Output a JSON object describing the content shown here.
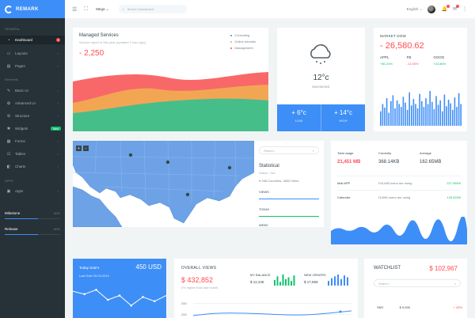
{
  "brand": {
    "name": "REMARK"
  },
  "sidebar": {
    "cat_general": "GENERAL",
    "cat_elements": "Elements",
    "cat_apps": "APPS",
    "items": [
      {
        "label": "Dashboard",
        "icon": "dashboard-icon",
        "badge": "3"
      },
      {
        "label": "Layouts",
        "icon": "layouts-icon"
      },
      {
        "label": "Pages",
        "icon": "pages-icon"
      },
      {
        "label": "Basic UI",
        "icon": "basic-ui-icon"
      },
      {
        "label": "Advanced UI",
        "icon": "advanced-ui-icon"
      },
      {
        "label": "Structure",
        "icon": "structure-icon"
      },
      {
        "label": "Widgets",
        "icon": "widgets-icon",
        "badge": "New"
      },
      {
        "label": "Forms",
        "icon": "forms-icon"
      },
      {
        "label": "Tables",
        "icon": "tables-icon"
      },
      {
        "label": "Charts",
        "icon": "charts-icon"
      },
      {
        "label": "Apps",
        "icon": "apps-icon"
      }
    ],
    "progress": [
      {
        "label": "Milestone",
        "pct_label": "60%",
        "value": 0.6
      },
      {
        "label": "Release",
        "pct_label": "60%",
        "value": 0.6
      }
    ]
  },
  "topbar": {
    "mega_label": "Mega",
    "search_placeholder": "Search Dashboard",
    "language": "English"
  },
  "managed": {
    "title": "Managed Services",
    "subtitle": "Service report of this year (updated 1 hour ago)",
    "value": "- 2,250",
    "legend": [
      {
        "label": "Consulting",
        "color": "#3e8ef7"
      },
      {
        "label": "Online tutorials",
        "color": "#f2a654"
      },
      {
        "label": "Management",
        "color": "#ff4c52"
      }
    ],
    "colors": {
      "red": "#f96868",
      "orange": "#f2a654",
      "green": "#46be8a"
    }
  },
  "weather": {
    "temp": "12°c",
    "desc": "SNOWING",
    "low": {
      "temp": "+ 6°c",
      "label": "LOW"
    },
    "high": {
      "temp": "+ 14°c",
      "label": "HIGH"
    }
  },
  "market": {
    "label": "MARKET DOW",
    "value": "- 26,580.62",
    "stats": [
      {
        "name": "APPL",
        "change": "+80.24%",
        "dir": "up"
      },
      {
        "name": "FB",
        "change": "-12.00%",
        "dir": "down"
      },
      {
        "name": "GOOG",
        "change": "+24.86%",
        "dir": "up"
      }
    ],
    "bars": [
      20,
      30,
      25,
      38,
      18,
      34,
      42,
      24,
      35,
      30,
      26,
      40,
      32,
      22,
      46,
      28,
      37,
      30,
      24,
      44,
      34,
      26,
      38,
      30,
      48,
      33,
      23,
      41,
      29,
      35,
      20,
      43,
      27,
      36,
      31,
      22,
      39,
      26,
      45,
      30
    ]
  },
  "map": {
    "search_placeholder": "Search...",
    "title": "Statistical",
    "status": "Status : live",
    "summary": "258 Countries, 4835 Cities",
    "lines": [
      {
        "label": "VIEWS",
        "color": "#3e8ef7",
        "value": 1.0
      },
      {
        "label": "TODAY",
        "color": "#11c26d",
        "value": 1.0
      },
      {
        "label": "WEEK",
        "color": "#9463f7",
        "value": 1.0
      }
    ],
    "zoom_in": "+",
    "zoom_out": "-"
  },
  "usage": {
    "head": [
      "Total usage",
      "Currently",
      "Average"
    ],
    "values": [
      "21,451 MB",
      "368.14KB",
      "162.65MB"
    ],
    "rows": [
      {
        "name": "Mail APP",
        "desc": "216,685 users are using",
        "value": "227.56KB"
      },
      {
        "name": "Calendar",
        "desc": "15,685 users are using",
        "value": "128.62KB"
      }
    ]
  },
  "today": {
    "title": "Today Sale's",
    "value": "450 USD",
    "sub": "Last Sale 25.03.2010",
    "points": [
      42,
      38,
      44,
      30,
      36,
      22,
      34,
      28,
      36
    ]
  },
  "overall": {
    "title": "OVERALL VIEWS",
    "value": "$ 432,852",
    "sub": "2% higher than last month",
    "balance_label": "MY BALANCE",
    "balance_value": "$ 12,346",
    "orders_label": "NEW ORDERS",
    "orders_value": "$ 17,556",
    "balance_bars": [
      6,
      10,
      4,
      12,
      7,
      9,
      5,
      11
    ],
    "orders_bars": [
      5,
      8,
      10,
      12,
      7,
      11,
      9
    ],
    "axis": [
      "250",
      "200"
    ]
  },
  "watchlist": {
    "title": "WATCHLIST",
    "value": "$ 102,967",
    "search_placeholder": "Search...",
    "rows": [
      {
        "symbol": "SMY",
        "price": "$ 9,500",
        "change": "+ 45%"
      }
    ]
  },
  "colors": {
    "accent": "#3e8ef7",
    "red": "#ff4c52",
    "green": "#11c26d",
    "purple": "#9463f7",
    "sidebar": "#263238"
  }
}
